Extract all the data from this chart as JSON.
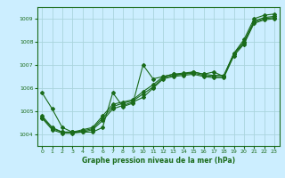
{
  "title": "Graphe pression niveau de la mer (hPa)",
  "bg_color": "#cceeff",
  "grid_color": "#aad4dd",
  "line_color": "#1a6b1a",
  "xlim": [
    -0.5,
    23.5
  ],
  "ylim": [
    1003.5,
    1009.5
  ],
  "yticks": [
    1004,
    1005,
    1006,
    1007,
    1008,
    1009
  ],
  "xticks": [
    0,
    1,
    2,
    3,
    4,
    5,
    6,
    7,
    8,
    9,
    10,
    11,
    12,
    13,
    14,
    15,
    16,
    17,
    18,
    19,
    20,
    21,
    22,
    23
  ],
  "series": [
    [
      1005.8,
      1005.1,
      1004.3,
      1004.1,
      1004.1,
      1004.1,
      1004.3,
      1005.8,
      1005.2,
      1005.35,
      1007.0,
      1006.4,
      1006.5,
      1006.6,
      1006.6,
      1006.7,
      1006.6,
      1006.7,
      1006.5,
      1007.5,
      1008.1,
      1009.0,
      1009.15,
      1009.2
    ],
    [
      1004.8,
      1004.3,
      1004.1,
      1004.1,
      1004.2,
      1004.3,
      1004.8,
      1005.3,
      1005.4,
      1005.5,
      1005.85,
      1006.15,
      1006.5,
      1006.6,
      1006.65,
      1006.7,
      1006.6,
      1006.55,
      1006.55,
      1007.5,
      1008.0,
      1008.9,
      1009.05,
      1009.1
    ],
    [
      1004.75,
      1004.25,
      1004.1,
      1004.1,
      1004.15,
      1004.25,
      1004.7,
      1005.2,
      1005.35,
      1005.45,
      1005.75,
      1006.05,
      1006.45,
      1006.55,
      1006.6,
      1006.65,
      1006.55,
      1006.5,
      1006.5,
      1007.45,
      1007.95,
      1008.85,
      1009.0,
      1009.05
    ],
    [
      1004.7,
      1004.2,
      1004.05,
      1004.05,
      1004.1,
      1004.2,
      1004.6,
      1005.1,
      1005.25,
      1005.4,
      1005.6,
      1006.0,
      1006.4,
      1006.5,
      1006.55,
      1006.6,
      1006.5,
      1006.45,
      1006.45,
      1007.4,
      1007.9,
      1008.8,
      1008.95,
      1009.0
    ]
  ]
}
